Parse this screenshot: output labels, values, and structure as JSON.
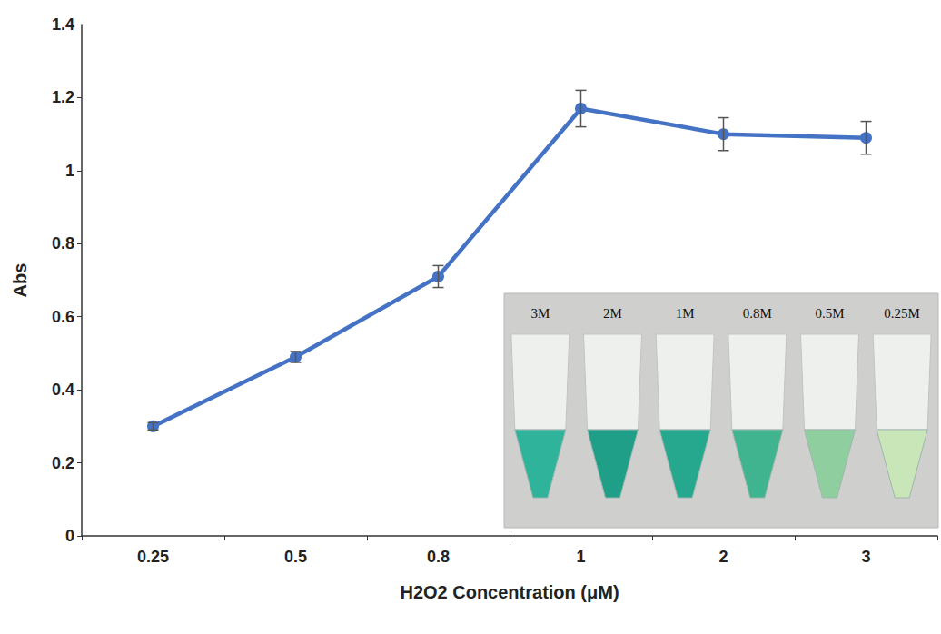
{
  "chart_data": {
    "type": "line",
    "x_label": "H2O2 Concentration (μM)",
    "y_label": "Abs",
    "categories": [
      "0.25",
      "0.5",
      "0.8",
      "1",
      "2",
      "3"
    ],
    "values": [
      0.3,
      0.49,
      0.71,
      1.17,
      1.1,
      1.09
    ],
    "errors": [
      0.01,
      0.015,
      0.03,
      0.05,
      0.045,
      0.045
    ],
    "color": "#4472c4",
    "marker": "circle",
    "ylim": [
      0,
      1.4
    ],
    "yticks": [
      0,
      0.2,
      0.4,
      0.6,
      0.8,
      1,
      1.2,
      1.4
    ],
    "grid": false,
    "annotations": [
      "3M",
      "2M",
      "1M",
      "0.8M",
      "0.5M",
      "0.25M"
    ]
  }
}
